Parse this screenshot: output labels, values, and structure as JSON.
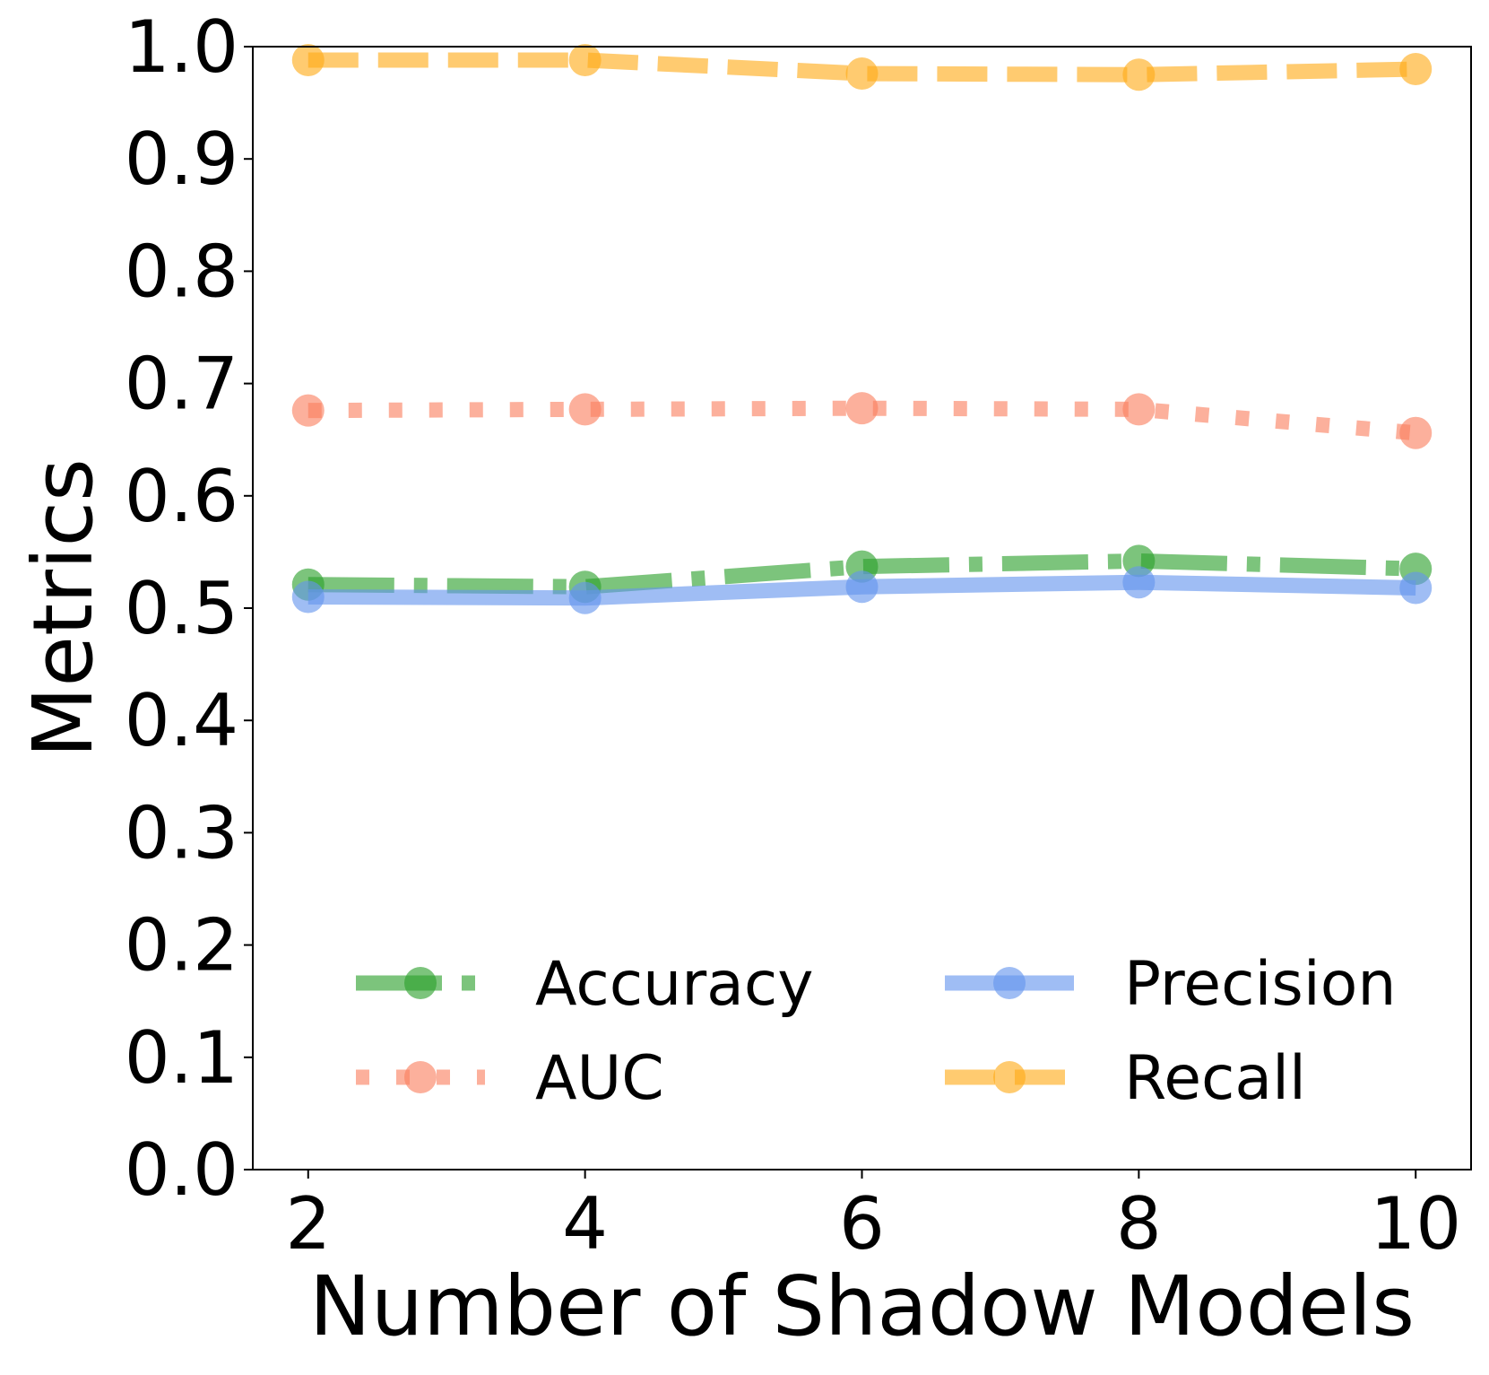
{
  "chart_data": {
    "type": "line",
    "title": "",
    "xlabel": "Number of Shadow Models",
    "ylabel": "Metrics",
    "x": [
      2,
      4,
      6,
      8,
      10
    ],
    "xlim": [
      1.6,
      10.4
    ],
    "ylim": [
      0.0,
      1.0
    ],
    "xticks": [
      "2",
      "4",
      "6",
      "8",
      "10"
    ],
    "yticks": [
      "0.0",
      "0.1",
      "0.2",
      "0.3",
      "0.4",
      "0.5",
      "0.6",
      "0.7",
      "0.8",
      "0.9",
      "1.0"
    ],
    "grid": false,
    "legend": {
      "placement": "lower-center",
      "columns": 2
    },
    "series": [
      {
        "name": "Accuracy",
        "values": [
          0.521,
          0.519,
          0.537,
          0.542,
          0.535
        ],
        "color": "#2ca02c",
        "style": "dashdot"
      },
      {
        "name": "Precision",
        "values": [
          0.51,
          0.509,
          0.519,
          0.523,
          0.518
        ],
        "color": "#6495ed",
        "style": "solid"
      },
      {
        "name": "AUC",
        "values": [
          0.676,
          0.677,
          0.678,
          0.677,
          0.656
        ],
        "color": "#fa8060",
        "style": "dotted"
      },
      {
        "name": "Recall",
        "values": [
          0.988,
          0.988,
          0.976,
          0.975,
          0.98
        ],
        "color": "#ffab18",
        "style": "dashed"
      }
    ]
  }
}
